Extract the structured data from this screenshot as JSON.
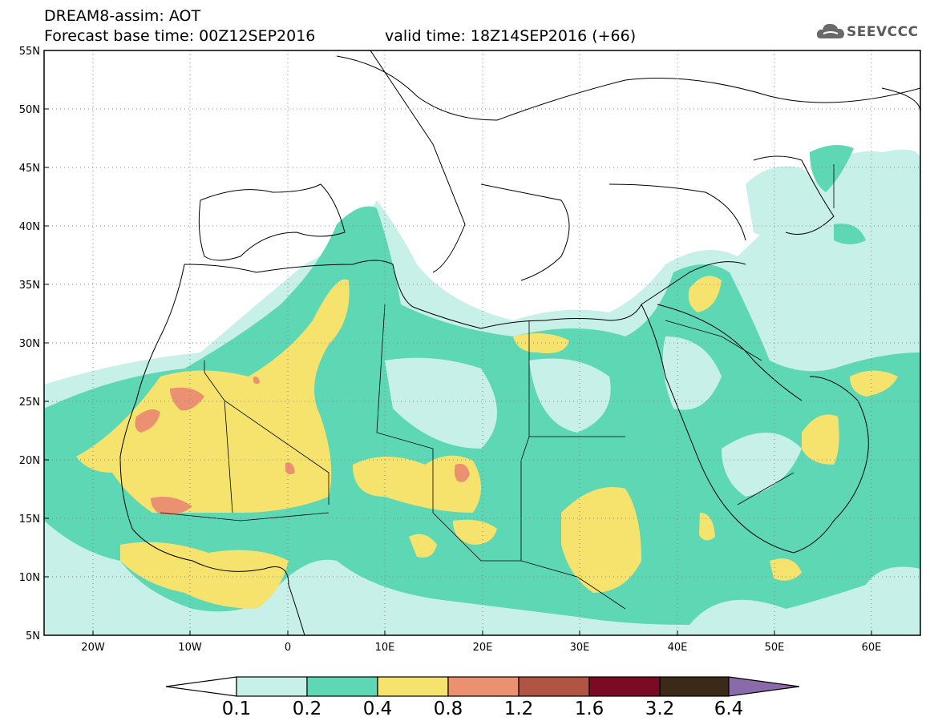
{
  "header": {
    "line1": "DREAM8-assim: AOT",
    "line2": "Forecast base time: 00Z12SEP2016",
    "line2b": "valid time: 18Z14SEP2016 (+66)"
  },
  "logo": {
    "text": "SEEVCCC",
    "icon": "cloud-icon"
  },
  "map": {
    "lon_range": [
      -25,
      65
    ],
    "lat_range": [
      5,
      55
    ],
    "lat_labels": [
      "55N",
      "50N",
      "45N",
      "40N",
      "35N",
      "30N",
      "25N",
      "20N",
      "15N",
      "10N",
      "5N"
    ],
    "lon_labels": [
      "20W",
      "10W",
      "0",
      "10E",
      "20E",
      "30E",
      "40E",
      "50E",
      "60E"
    ]
  },
  "colorbar": {
    "labels": [
      "0.1",
      "0.2",
      "0.4",
      "0.8",
      "1.2",
      "1.6",
      "3.2",
      "6.4"
    ],
    "colors": [
      "#ffffff",
      "#c6f0e8",
      "#5ed7b4",
      "#f6e36e",
      "#eb9070",
      "#b15444",
      "#7b0a25",
      "#3b2a17",
      "#8a6aa8"
    ]
  }
}
